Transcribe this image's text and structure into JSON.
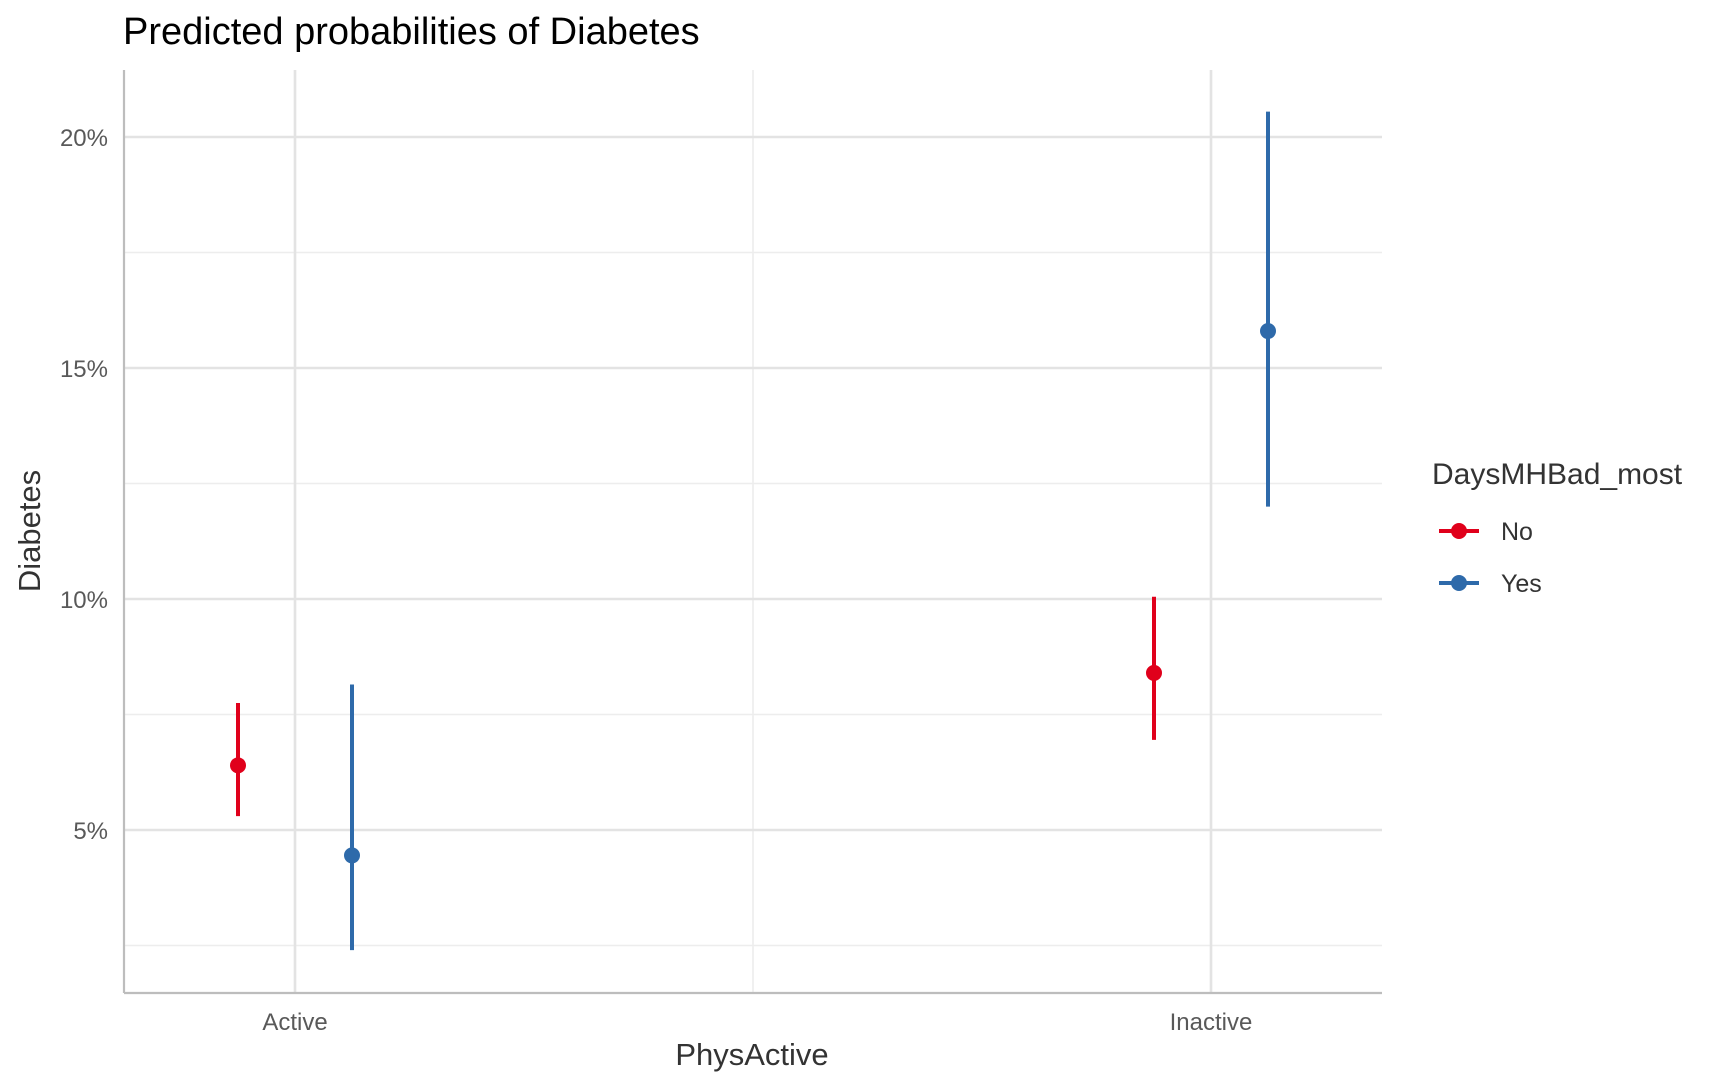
{
  "chart_data": {
    "type": "scatter",
    "title": "Predicted probabilities of Diabetes",
    "xlabel": "PhysActive",
    "ylabel": "Diabetes",
    "categories": [
      "Active",
      "Inactive"
    ],
    "y_ticks": [
      5,
      10,
      15,
      20
    ],
    "y_tick_labels": [
      "5%",
      "10%",
      "15%",
      "20%"
    ],
    "ylim": [
      2.1,
      22.1
    ],
    "grid": true,
    "legend": {
      "title": "DaysMHBad_most",
      "position": "right"
    },
    "series": [
      {
        "name": "No",
        "color": "#e0001b",
        "values": [
          6.4,
          8.4
        ],
        "lower": [
          5.3,
          6.95
        ],
        "upper": [
          7.75,
          10.05
        ]
      },
      {
        "name": "Yes",
        "color": "#2e6aaa",
        "values": [
          4.45,
          15.8
        ],
        "lower": [
          2.4,
          12.0
        ],
        "upper": [
          8.15,
          20.55
        ]
      }
    ]
  }
}
